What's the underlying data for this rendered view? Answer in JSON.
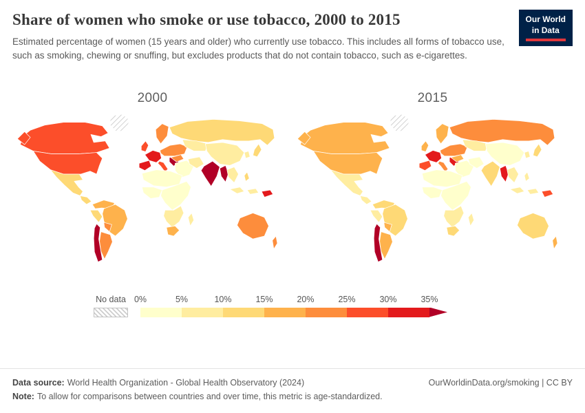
{
  "header": {
    "title": "Share of women who smoke or use tobacco, 2000 to 2015",
    "subtitle": "Estimated percentage of women (15 years and older) who currently use tobacco. This includes all forms of tobacco use, such as smoking, chewing or snuffing, but excludes products that do not contain tobacco, such as e-cigarettes.",
    "logo": {
      "line1": "Our World",
      "line2": "in Data",
      "bg_color": "#002147",
      "accent_color": "#e0373c"
    }
  },
  "maps": [
    {
      "year": "2000"
    },
    {
      "year": "2015"
    }
  ],
  "legend": {
    "no_data_label": "No data",
    "tick_labels": [
      "0%",
      "5%",
      "10%",
      "15%",
      "20%",
      "25%",
      "30%",
      "35%"
    ]
  },
  "footer": {
    "source_label": "Data source:",
    "source_text": "World Health Organization - Global Health Observatory (2024)",
    "note_label": "Note:",
    "note_text": "To allow for comparisons between countries and over time, this metric is age-standardized.",
    "link": "OurWorldinData.org/smoking | CC BY"
  },
  "chart_data": {
    "type": "choropleth",
    "title": "Share of women who smoke or use tobacco",
    "unit": "% of women aged 15+ currently using tobacco (age-standardized)",
    "years": [
      "2000",
      "2015"
    ],
    "legend_position": "bottom",
    "bins": [
      {
        "label": "0%-5%",
        "color": "#ffffcc"
      },
      {
        "label": "5%-10%",
        "color": "#ffeda0"
      },
      {
        "label": "10%-15%",
        "color": "#fed976"
      },
      {
        "label": "15%-20%",
        "color": "#feb24c"
      },
      {
        "label": "20%-25%",
        "color": "#fd8d3c"
      },
      {
        "label": "25%-30%",
        "color": "#fc4e2a"
      },
      {
        "label": "30%-35%",
        "color": "#e31a1c"
      },
      {
        "label": "35%+",
        "color": "#b10026"
      }
    ],
    "no_data": {
      "label": "No data",
      "pattern": "diagonal-hatch"
    },
    "regions": [
      {
        "id": "greenland",
        "name": "Greenland",
        "bin_2000": null,
        "bin_2015": null
      },
      {
        "id": "canada",
        "name": "Canada",
        "bin_2000": 5,
        "bin_2015": 3
      },
      {
        "id": "usa",
        "name": "United States",
        "bin_2000": 5,
        "bin_2015": 3
      },
      {
        "id": "mexico",
        "name": "Mexico",
        "bin_2000": 2,
        "bin_2015": 1
      },
      {
        "id": "central-america",
        "name": "Central America",
        "bin_2000": 2,
        "bin_2015": 1
      },
      {
        "id": "colombia-venezuela",
        "name": "Colombia / Venezuela",
        "bin_2000": 3,
        "bin_2015": 2
      },
      {
        "id": "peru",
        "name": "Peru",
        "bin_2000": 2,
        "bin_2015": 1
      },
      {
        "id": "brazil",
        "name": "Brazil",
        "bin_2000": 3,
        "bin_2015": 2
      },
      {
        "id": "bolivia",
        "name": "Bolivia",
        "bin_2000": 4,
        "bin_2015": 3
      },
      {
        "id": "argentina",
        "name": "Argentina",
        "bin_2000": 4,
        "bin_2015": 3
      },
      {
        "id": "chile",
        "name": "Chile",
        "bin_2000": 7,
        "bin_2015": 7
      },
      {
        "id": "uk",
        "name": "United Kingdom",
        "bin_2000": 5,
        "bin_2015": 3
      },
      {
        "id": "scandinavia",
        "name": "Scandinavia",
        "bin_2000": 4,
        "bin_2015": 3
      },
      {
        "id": "western-europe",
        "name": "Western Europe",
        "bin_2000": 6,
        "bin_2015": 6
      },
      {
        "id": "eastern-europe",
        "name": "Eastern Europe",
        "bin_2000": 4,
        "bin_2015": 4
      },
      {
        "id": "iberia",
        "name": "Spain / Portugal",
        "bin_2000": 6,
        "bin_2015": 5
      },
      {
        "id": "italy",
        "name": "Italy",
        "bin_2000": 5,
        "bin_2015": 4
      },
      {
        "id": "balkans",
        "name": "Balkans / Greece",
        "bin_2000": 7,
        "bin_2015": 6
      },
      {
        "id": "russia",
        "name": "Russia",
        "bin_2000": 2,
        "bin_2015": 4
      },
      {
        "id": "central-asia",
        "name": "Central Asia",
        "bin_2000": 1,
        "bin_2015": 1
      },
      {
        "id": "turkey",
        "name": "Turkey",
        "bin_2000": 4,
        "bin_2015": 3
      },
      {
        "id": "middle-east",
        "name": "Arabian Peninsula",
        "bin_2000": 0,
        "bin_2015": 0
      },
      {
        "id": "iran",
        "name": "Iran",
        "bin_2000": 1,
        "bin_2015": 0
      },
      {
        "id": "india",
        "name": "India",
        "bin_2000": 7,
        "bin_2015": 2
      },
      {
        "id": "myanmar",
        "name": "Myanmar / Bangladesh",
        "bin_2000": 7,
        "bin_2015": 6
      },
      {
        "id": "southeast-asia",
        "name": "Southeast Asia",
        "bin_2000": 1,
        "bin_2015": 1
      },
      {
        "id": "china",
        "name": "China",
        "bin_2000": 1,
        "bin_2015": 0
      },
      {
        "id": "korea",
        "name": "Korea",
        "bin_2000": 1,
        "bin_2015": 1
      },
      {
        "id": "japan",
        "name": "Japan",
        "bin_2000": 2,
        "bin_2015": 2
      },
      {
        "id": "philippines",
        "name": "Philippines",
        "bin_2000": 2,
        "bin_2015": 1
      },
      {
        "id": "indonesia",
        "name": "Indonesia",
        "bin_2000": 1,
        "bin_2015": 1
      },
      {
        "id": "png",
        "name": "Papua New Guinea",
        "bin_2000": 6,
        "bin_2015": 5
      },
      {
        "id": "australia",
        "name": "Australia",
        "bin_2000": 4,
        "bin_2015": 2
      },
      {
        "id": "new-zealand",
        "name": "New Zealand",
        "bin_2000": 4,
        "bin_2015": 3
      },
      {
        "id": "north-africa",
        "name": "North Africa",
        "bin_2000": 0,
        "bin_2015": 0
      },
      {
        "id": "west-africa",
        "name": "West Africa",
        "bin_2000": 0,
        "bin_2015": 0
      },
      {
        "id": "east-africa",
        "name": "East / Central Africa",
        "bin_2000": 0,
        "bin_2015": 0
      },
      {
        "id": "southern-africa",
        "name": "Southern Africa",
        "bin_2000": 1,
        "bin_2015": 1
      },
      {
        "id": "south-africa",
        "name": "South Africa",
        "bin_2000": 3,
        "bin_2015": 2
      },
      {
        "id": "madagascar",
        "name": "Madagascar",
        "bin_2000": 1,
        "bin_2015": 1
      }
    ]
  }
}
